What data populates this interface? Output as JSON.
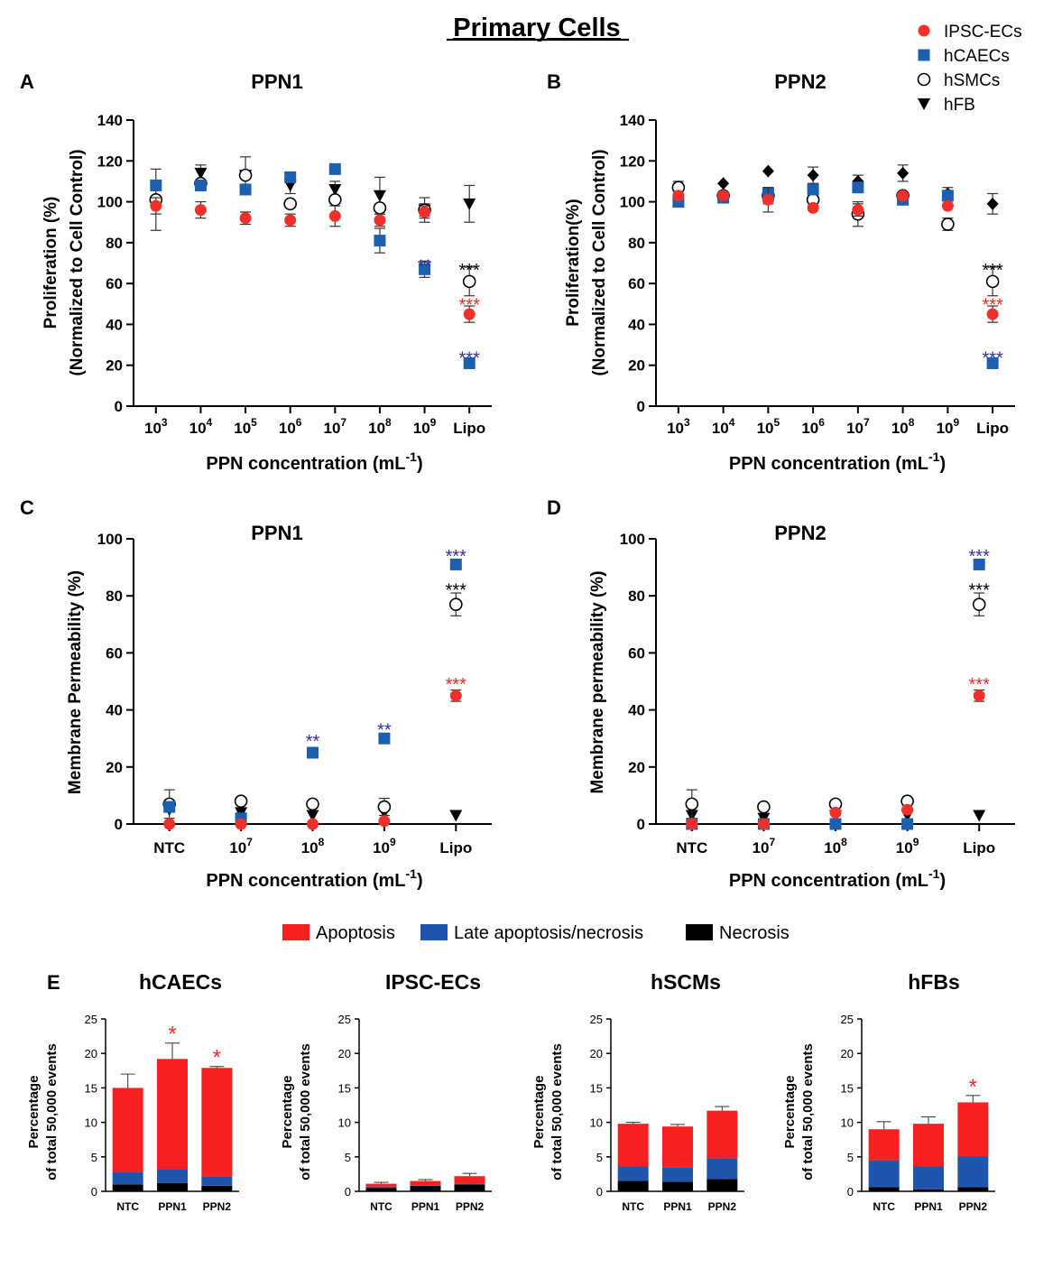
{
  "figure_title": "Primary Cells",
  "colors": {
    "ipsc": "#f0302a",
    "hcaec": "#1c5fb0",
    "hsmc": "#000000",
    "hfb": "#000000",
    "sig_blue": "#2e3192",
    "sig_red": "#ee2b2b",
    "apoptosis": "#f92020",
    "late": "#1f55ad",
    "necrosis": "#000000"
  },
  "legend": {
    "series": [
      "IPSC-ECs",
      "hCAECs",
      "hSMCs",
      "hFB"
    ],
    "bars": [
      "Apoptosis",
      "Late apoptosis/necrosis",
      "Necrosis"
    ]
  },
  "chart_data": [
    {
      "panel": "A",
      "type": "scatter",
      "title": "PPN1",
      "ylabel": [
        "Proliferation (%)",
        "(Normalized to Cell Control)"
      ],
      "xlabel": "PPN concentration (mL",
      "xlabel_sup": "-1",
      "ylim": [
        0,
        140
      ],
      "yticks": [
        0,
        20,
        40,
        60,
        80,
        100,
        120,
        140
      ],
      "categories": [
        [
          "10",
          "3"
        ],
        [
          "10",
          "4"
        ],
        [
          "10",
          "5"
        ],
        [
          "10",
          "6"
        ],
        [
          "10",
          "7"
        ],
        [
          "10",
          "8"
        ],
        [
          "10",
          "9"
        ],
        [
          "Lipo",
          ""
        ]
      ],
      "series": [
        {
          "name": "hFB",
          "marker": "triangle-down",
          "values": [
            99,
            114,
            113,
            108,
            106,
            103,
            96,
            99
          ],
          "err": [
            0,
            4,
            0,
            4,
            4,
            9,
            3,
            9
          ]
        },
        {
          "name": "hSMCs",
          "marker": "circle-open",
          "values": [
            101,
            109,
            113,
            99,
            101,
            97,
            96,
            61
          ],
          "err": [
            15,
            0,
            9,
            0,
            0,
            0,
            6,
            7
          ]
        },
        {
          "name": "hCAECs",
          "marker": "square",
          "values": [
            108,
            108,
            106,
            112,
            116,
            81,
            67,
            21
          ],
          "err": [
            0,
            0,
            0,
            0,
            0,
            6,
            4,
            0
          ]
        },
        {
          "name": "IPSC-ECs",
          "marker": "circle",
          "values": [
            98,
            96,
            92,
            91,
            93,
            91,
            95,
            45
          ],
          "err": [
            4,
            4,
            3,
            3,
            5,
            3,
            3,
            4
          ]
        }
      ],
      "annotations": [
        {
          "cat": 6,
          "y": 70,
          "text": "**",
          "color": "sig_blue"
        },
        {
          "cat": 7,
          "y": 68,
          "text": "***",
          "color": "hsmc"
        },
        {
          "cat": 7,
          "y": 51,
          "text": "***",
          "color": "sig_red"
        },
        {
          "cat": 7,
          "y": 25,
          "text": "***",
          "color": "sig_blue"
        }
      ]
    },
    {
      "panel": "B",
      "type": "scatter",
      "title": "PPN2",
      "ylabel": [
        "Proliferation(%)",
        "(Normalized to Cell Control)"
      ],
      "xlabel": "PPN concentration (mL",
      "xlabel_sup": "-1",
      "ylim": [
        0,
        140
      ],
      "yticks": [
        0,
        20,
        40,
        60,
        80,
        100,
        120,
        140
      ],
      "categories": [
        [
          "10",
          "3"
        ],
        [
          "10",
          "4"
        ],
        [
          "10",
          "5"
        ],
        [
          "10",
          "6"
        ],
        [
          "10",
          "7"
        ],
        [
          "10",
          "8"
        ],
        [
          "10",
          "9"
        ],
        [
          "Lipo",
          ""
        ]
      ],
      "series": [
        {
          "name": "hFB",
          "marker": "diamond",
          "values": [
            104,
            109,
            115,
            113,
            110,
            114,
            104,
            99
          ],
          "err": [
            0,
            0,
            0,
            4,
            3,
            4,
            3,
            5
          ]
        },
        {
          "name": "hSMCs",
          "marker": "circle-open",
          "values": [
            107,
            103,
            103,
            101,
            94,
            103,
            89,
            61
          ],
          "err": [
            3,
            0,
            4,
            0,
            6,
            0,
            3,
            7
          ]
        },
        {
          "name": "hCAECs",
          "marker": "square",
          "values": [
            100,
            102,
            104,
            106,
            107,
            101,
            103,
            21
          ],
          "err": [
            0,
            0,
            0,
            0,
            0,
            0,
            0,
            0
          ]
        },
        {
          "name": "IPSC-ECs",
          "marker": "circle",
          "values": [
            103,
            103,
            101,
            97,
            96,
            103,
            98,
            45
          ],
          "err": [
            0,
            0,
            6,
            0,
            3,
            0,
            0,
            4
          ]
        }
      ],
      "annotations": [
        {
          "cat": 7,
          "y": 68,
          "text": "***",
          "color": "hsmc"
        },
        {
          "cat": 7,
          "y": 51,
          "text": "***",
          "color": "sig_red"
        },
        {
          "cat": 7,
          "y": 25,
          "text": "***",
          "color": "sig_blue"
        }
      ]
    },
    {
      "panel": "C",
      "type": "scatter",
      "title": "PPN1",
      "ylabel": [
        "Membrane Permeability (%)"
      ],
      "xlabel": "PPN concentration (mL",
      "xlabel_sup": "-1",
      "ylim": [
        0,
        100
      ],
      "yticks": [
        0,
        20,
        40,
        60,
        80,
        100
      ],
      "categories": [
        [
          "NTC",
          ""
        ],
        [
          "10",
          "7"
        ],
        [
          "10",
          "8"
        ],
        [
          "10",
          "9"
        ],
        [
          "Lipo",
          ""
        ]
      ],
      "series": [
        {
          "name": "hFB",
          "marker": "triangle-down",
          "values": [
            5,
            4,
            3,
            4,
            3
          ],
          "err": [
            0,
            0,
            0,
            0,
            0
          ]
        },
        {
          "name": "hSMCs",
          "marker": "circle-open",
          "values": [
            7,
            8,
            7,
            6,
            77
          ],
          "err": [
            5,
            0,
            0,
            3,
            4
          ]
        },
        {
          "name": "hCAECs",
          "marker": "square",
          "values": [
            6,
            2,
            25,
            30,
            91
          ],
          "err": [
            0,
            0,
            0,
            0,
            0
          ]
        },
        {
          "name": "IPSC-ECs",
          "marker": "circle",
          "values": [
            0,
            0,
            0,
            1,
            45
          ],
          "err": [
            0,
            0,
            0,
            0,
            2
          ]
        }
      ],
      "annotations": [
        {
          "cat": 2,
          "y": 30,
          "text": "**",
          "color": "sig_blue"
        },
        {
          "cat": 3,
          "y": 34,
          "text": "**",
          "color": "sig_blue"
        },
        {
          "cat": 4,
          "y": 95,
          "text": "***",
          "color": "sig_blue"
        },
        {
          "cat": 4,
          "y": 83,
          "text": "***",
          "color": "hsmc"
        },
        {
          "cat": 4,
          "y": 50,
          "text": "***",
          "color": "sig_red"
        }
      ]
    },
    {
      "panel": "D",
      "type": "scatter",
      "title": "PPN2",
      "ylabel": [
        "Membrane permeability (%)"
      ],
      "xlabel": "PPN concentration (mL",
      "xlabel_sup": "-1",
      "ylim": [
        0,
        100
      ],
      "yticks": [
        0,
        20,
        40,
        60,
        80,
        100
      ],
      "categories": [
        [
          "NTC",
          ""
        ],
        [
          "10",
          "7"
        ],
        [
          "10",
          "8"
        ],
        [
          "10",
          "9"
        ],
        [
          "Lipo",
          ""
        ]
      ],
      "series": [
        {
          "name": "hFB",
          "marker": "triangle-down",
          "values": [
            3,
            2,
            3,
            3,
            3
          ],
          "err": [
            0,
            0,
            0,
            0,
            0
          ]
        },
        {
          "name": "hSMCs",
          "marker": "circle-open",
          "values": [
            7,
            6,
            7,
            8,
            77
          ],
          "err": [
            5,
            0,
            0,
            0,
            4
          ]
        },
        {
          "name": "hCAECs",
          "marker": "square",
          "values": [
            0,
            0,
            0,
            0,
            91
          ],
          "err": [
            0,
            0,
            0,
            0,
            0
          ]
        },
        {
          "name": "IPSC-ECs",
          "marker": "circle",
          "values": [
            0,
            0,
            4,
            5,
            45
          ],
          "err": [
            0,
            0,
            0,
            0,
            2
          ]
        }
      ],
      "annotations": [
        {
          "cat": 4,
          "y": 95,
          "text": "***",
          "color": "sig_blue"
        },
        {
          "cat": 4,
          "y": 83,
          "text": "***",
          "color": "hsmc"
        },
        {
          "cat": 4,
          "y": 50,
          "text": "***",
          "color": "sig_red"
        }
      ]
    },
    {
      "panel": "E",
      "type": "bar",
      "title": "hCAECs",
      "stacked": true,
      "ylabel": [
        "Percentage",
        "of total 50,000 events"
      ],
      "ylim": [
        0,
        25
      ],
      "yticks": [
        0,
        5,
        10,
        15,
        20,
        25
      ],
      "categories": [
        "NTC",
        "PPN1",
        "PPN2"
      ],
      "series": [
        {
          "name": "Necrosis",
          "values": [
            1.0,
            1.2,
            0.8
          ],
          "err": [
            0,
            0.2,
            0
          ]
        },
        {
          "name": "Late apoptosis/necrosis",
          "values": [
            1.8,
            2.0,
            1.3
          ],
          "err": [
            0.7,
            0.6,
            0
          ]
        },
        {
          "name": "Apoptosis",
          "values": [
            12.2,
            16.0,
            15.8
          ],
          "err": [
            2.0,
            2.3,
            0.2
          ]
        }
      ],
      "annotations": [
        {
          "cat": 1,
          "text": "*"
        },
        {
          "cat": 2,
          "text": "*"
        }
      ]
    },
    {
      "panel": "",
      "type": "bar",
      "title": "IPSC-ECs",
      "stacked": true,
      "ylabel": [
        "Percentage",
        "of total 50,000 events"
      ],
      "ylim": [
        0,
        25
      ],
      "yticks": [
        0,
        5,
        10,
        15,
        20,
        25
      ],
      "categories": [
        "NTC",
        "PPN1",
        "PPN2"
      ],
      "series": [
        {
          "name": "Necrosis",
          "values": [
            0.5,
            0.8,
            1.0
          ],
          "err": [
            0,
            0.3,
            0.5
          ]
        },
        {
          "name": "Late apoptosis/necrosis",
          "values": [
            0.2,
            0.1,
            0.1
          ],
          "err": [
            0,
            0,
            0
          ]
        },
        {
          "name": "Apoptosis",
          "values": [
            0.4,
            0.6,
            1.1
          ],
          "err": [
            0.2,
            0.2,
            0.4
          ]
        }
      ],
      "annotations": []
    },
    {
      "panel": "",
      "type": "bar",
      "title": "hSCMs",
      "stacked": true,
      "ylabel": [
        "Percentage",
        "of total 50,000 events"
      ],
      "ylim": [
        0,
        25
      ],
      "yticks": [
        0,
        5,
        10,
        15,
        20,
        25
      ],
      "categories": [
        "NTC",
        "PPN1",
        "PPN2"
      ],
      "series": [
        {
          "name": "Necrosis",
          "values": [
            1.5,
            1.4,
            1.8
          ],
          "err": [
            0.9,
            0.4,
            0.6
          ]
        },
        {
          "name": "Late apoptosis/necrosis",
          "values": [
            2.1,
            2.1,
            3.0
          ],
          "err": [
            0,
            0.2,
            0.5
          ]
        },
        {
          "name": "Apoptosis",
          "values": [
            6.2,
            5.9,
            6.9
          ],
          "err": [
            0.2,
            0.3,
            0.6
          ]
        }
      ],
      "annotations": []
    },
    {
      "panel": "",
      "type": "bar",
      "title": "hFBs",
      "stacked": true,
      "ylabel": [
        "Percentage",
        "of total 50,000 events"
      ],
      "ylim": [
        0,
        25
      ],
      "yticks": [
        0,
        5,
        10,
        15,
        20,
        25
      ],
      "categories": [
        "NTC",
        "PPN1",
        "PPN2"
      ],
      "series": [
        {
          "name": "Necrosis",
          "values": [
            0.6,
            0.3,
            0.6
          ],
          "err": [
            0,
            0,
            0.4
          ]
        },
        {
          "name": "Late apoptosis/necrosis",
          "values": [
            3.9,
            3.3,
            4.5
          ],
          "err": [
            3.2,
            0.9,
            1.1
          ]
        },
        {
          "name": "Apoptosis",
          "values": [
            4.5,
            6.2,
            7.8
          ],
          "err": [
            1.1,
            1.0,
            1.0
          ]
        }
      ],
      "annotations": [
        {
          "cat": 2,
          "text": "*"
        }
      ]
    }
  ]
}
